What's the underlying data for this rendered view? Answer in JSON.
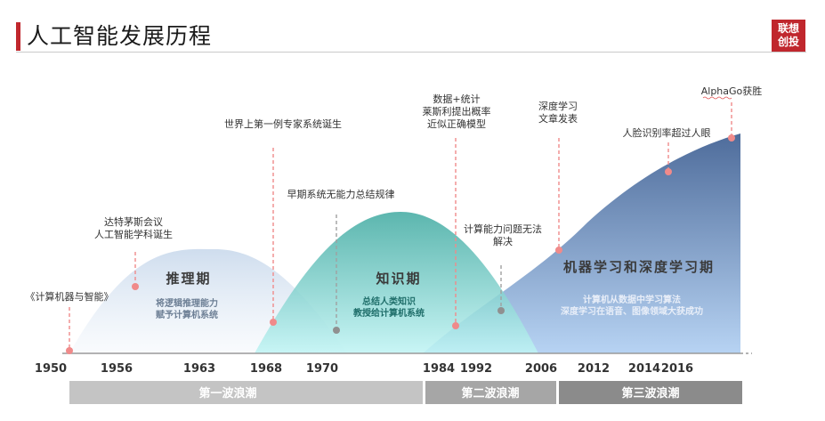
{
  "header": {
    "title": "人工智能发展历程",
    "logo_line1": "联想",
    "logo_line2": "创投"
  },
  "periods": {
    "reasoning": {
      "name": "推理期",
      "desc": [
        "将逻辑推理能力",
        "赋予计算机系统"
      ]
    },
    "knowledge": {
      "name": "知识期",
      "desc": [
        "总结人类知识",
        "教授给计算机系统"
      ]
    },
    "learning": {
      "name": "机器学习和深度学习期",
      "desc": [
        "计算机从数据中学习算法",
        "深度学习在语音、图像领域大获成功"
      ]
    }
  },
  "events": [
    {
      "lines": [
        "《计算机器与智能》"
      ]
    },
    {
      "lines": [
        "达特茅斯会议",
        "人工智能学科诞生"
      ]
    },
    {
      "lines": [
        "世界上第一例专家系统诞生"
      ]
    },
    {
      "lines": [
        "早期系统无能力总结规律"
      ]
    },
    {
      "lines": [
        "数据+统计",
        "莱斯利提出概率",
        "近似正确模型"
      ]
    },
    {
      "lines": [
        "计算能力问题无法",
        "解决"
      ]
    },
    {
      "lines": [
        "深度学习",
        "文章发表"
      ]
    },
    {
      "lines": [
        "人脸识别率超过人眼"
      ]
    },
    {
      "lines": [
        "AlphaGo获胜"
      ]
    }
  ],
  "years": [
    "1950",
    "1956",
    "1963",
    "1968",
    "1970",
    "1984",
    "1992",
    "2006",
    "2012",
    "2014",
    "2016"
  ],
  "waves": [
    "第一波浪潮",
    "第二波浪潮",
    "第三波浪潮"
  ],
  "colors": {
    "accent": "#c0272d",
    "marker": "#f08a8a",
    "wave_bar": "#a9a9a9"
  }
}
